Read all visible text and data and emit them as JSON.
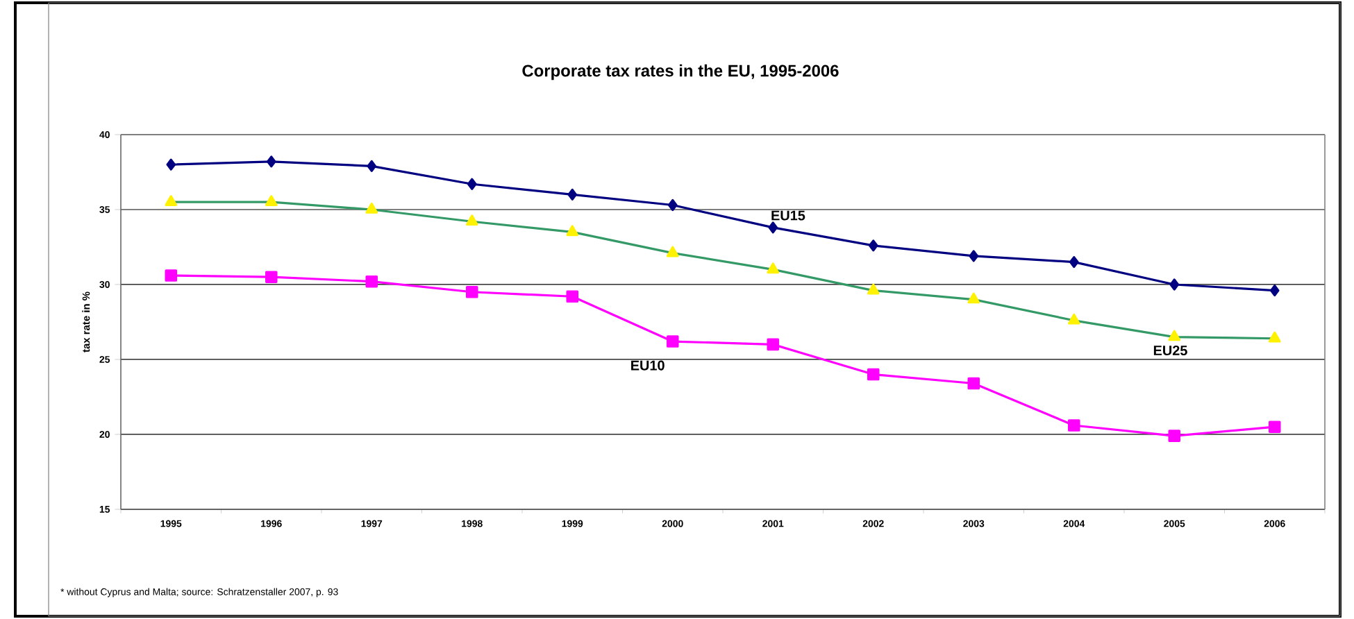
{
  "chart_data": {
    "type": "line",
    "title": "Corporate tax rates in the EU, 1995-2006",
    "ylabel": "tax rate in  %",
    "categories": [
      "1995",
      "1996",
      "1997",
      "1998",
      "1999",
      "2000",
      "2001",
      "2002",
      "2003",
      "2004",
      "2005",
      "2006"
    ],
    "series": [
      {
        "name": "EU15",
        "color": "#000080",
        "marker": "diamond",
        "values": [
          38.0,
          38.2,
          37.9,
          36.7,
          36.0,
          35.3,
          33.8,
          32.6,
          31.9,
          31.5,
          30.0,
          29.6
        ]
      },
      {
        "name": "EU25",
        "color": "#339966",
        "marker": "triangle",
        "values": [
          35.5,
          35.5,
          35.0,
          34.2,
          33.5,
          32.1,
          31.0,
          29.6,
          29.0,
          27.6,
          26.5,
          26.4
        ]
      },
      {
        "name": "EU10",
        "color": "#ff00ff",
        "marker": "square",
        "values": [
          30.6,
          30.5,
          30.2,
          29.5,
          29.2,
          26.2,
          26.0,
          24.0,
          23.4,
          20.6,
          19.9,
          20.5
        ]
      }
    ],
    "ylim": [
      15,
      40
    ],
    "yticks": [
      15,
      20,
      25,
      30,
      35,
      40
    ],
    "grid": "y",
    "annotations": [
      "* without Cyprus and Malta; source: Schratzenstaller 2007, p. 93"
    ]
  }
}
